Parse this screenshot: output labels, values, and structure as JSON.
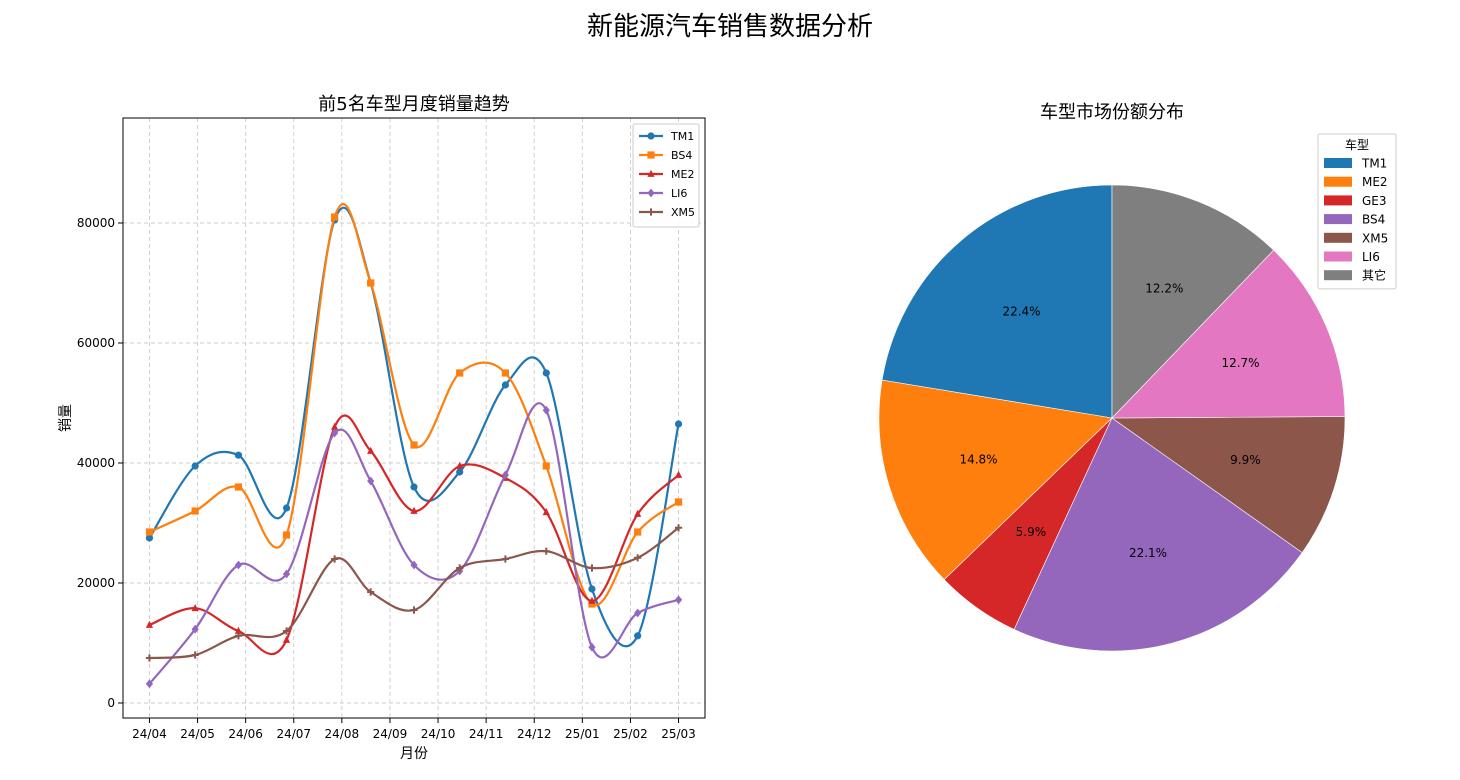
{
  "figure": {
    "title": "新能源汽车销售数据分析"
  },
  "chart_data": [
    {
      "type": "line",
      "title": "前5名车型月度销量趋势",
      "xlabel": "月份",
      "ylabel": "销量",
      "categories": [
        "24/04",
        "24/05",
        "24/06",
        "24/07",
        "24/08",
        "24/09",
        "24/10",
        "24/11",
        "24/12",
        "25/01",
        "25/02",
        "25/03"
      ],
      "yticks": [
        0,
        20000,
        40000,
        60000,
        80000
      ],
      "ylim": [
        -2500,
        97500
      ],
      "grid": true,
      "legend": "top-right",
      "series": [
        {
          "name": "TM1",
          "color": "#1f77b4",
          "marker": "circle",
          "points": [
            [
              0.0,
              27500
            ],
            [
              0.95,
              39500
            ],
            [
              1.85,
              41300
            ],
            [
              2.85,
              32500
            ],
            [
              3.85,
              80500
            ],
            [
              4.6,
              70000
            ],
            [
              5.5,
              36000
            ],
            [
              6.45,
              38500
            ],
            [
              7.4,
              53000
            ],
            [
              8.25,
              55000
            ],
            [
              9.2,
              19000
            ],
            [
              10.15,
              11200
            ],
            [
              11.0,
              46500
            ]
          ]
        },
        {
          "name": "BS4",
          "color": "#ff7f0e",
          "marker": "square",
          "points": [
            [
              0.0,
              28500
            ],
            [
              0.95,
              32000
            ],
            [
              1.85,
              36000
            ],
            [
              2.85,
              28000
            ],
            [
              3.85,
              81000
            ],
            [
              4.6,
              70000
            ],
            [
              5.5,
              43000
            ],
            [
              6.45,
              55000
            ],
            [
              7.4,
              55000
            ],
            [
              8.25,
              39500
            ],
            [
              9.2,
              16500
            ],
            [
              10.15,
              28500
            ],
            [
              11.0,
              33500
            ]
          ]
        },
        {
          "name": "ME2",
          "color": "#d62728",
          "marker": "triangle",
          "points": [
            [
              0.0,
              13000
            ],
            [
              0.95,
              15800
            ],
            [
              1.85,
              12000
            ],
            [
              2.85,
              10500
            ],
            [
              3.85,
              46000
            ],
            [
              4.6,
              42000
            ],
            [
              5.5,
              32000
            ],
            [
              6.45,
              39500
            ],
            [
              7.4,
              37500
            ],
            [
              8.25,
              31800
            ],
            [
              9.2,
              17000
            ],
            [
              10.15,
              31500
            ],
            [
              11.0,
              38000
            ]
          ]
        },
        {
          "name": "LI6",
          "color": "#9467bd",
          "marker": "diamond",
          "points": [
            [
              0.0,
              3200
            ],
            [
              0.95,
              12300
            ],
            [
              1.85,
              23000
            ],
            [
              2.85,
              21500
            ],
            [
              3.85,
              45000
            ],
            [
              4.6,
              37000
            ],
            [
              5.5,
              23000
            ],
            [
              6.45,
              22000
            ],
            [
              7.4,
              38000
            ],
            [
              8.25,
              48800
            ],
            [
              9.2,
              9300
            ],
            [
              10.15,
              15000
            ],
            [
              11.0,
              17200
            ]
          ]
        },
        {
          "name": "XM5",
          "color": "#8c564b",
          "marker": "plus",
          "points": [
            [
              0.0,
              7500
            ],
            [
              0.95,
              8000
            ],
            [
              1.85,
              11200
            ],
            [
              2.85,
              12000
            ],
            [
              3.85,
              24000
            ],
            [
              4.6,
              18500
            ],
            [
              5.5,
              15500
            ],
            [
              6.45,
              22500
            ],
            [
              7.4,
              24000
            ],
            [
              8.25,
              25300
            ],
            [
              9.2,
              22500
            ],
            [
              10.15,
              24200
            ],
            [
              11.0,
              29200
            ]
          ]
        }
      ]
    },
    {
      "type": "pie",
      "title": "车型市场份额分布",
      "legend_title": "车型",
      "legend": "top-right",
      "slices": [
        {
          "label": "TM1",
          "value": 22.4,
          "pct_label": "22.4%",
          "color": "#1f77b4"
        },
        {
          "label": "ME2",
          "value": 14.8,
          "pct_label": "14.8%",
          "color": "#ff7f0e"
        },
        {
          "label": "GE3",
          "value": 5.9,
          "pct_label": "5.9%",
          "color": "#d62728"
        },
        {
          "label": "BS4",
          "value": 22.1,
          "pct_label": "22.1%",
          "color": "#9467bd"
        },
        {
          "label": "XM5",
          "value": 9.9,
          "pct_label": "9.9%",
          "color": "#8c564b"
        },
        {
          "label": "LI6",
          "value": 12.7,
          "pct_label": "12.7%",
          "color": "#e377c2"
        },
        {
          "label": "其它",
          "value": 12.2,
          "pct_label": "12.2%",
          "color": "#7f7f7f"
        }
      ],
      "start_angle": 90,
      "counterclock": true
    }
  ]
}
